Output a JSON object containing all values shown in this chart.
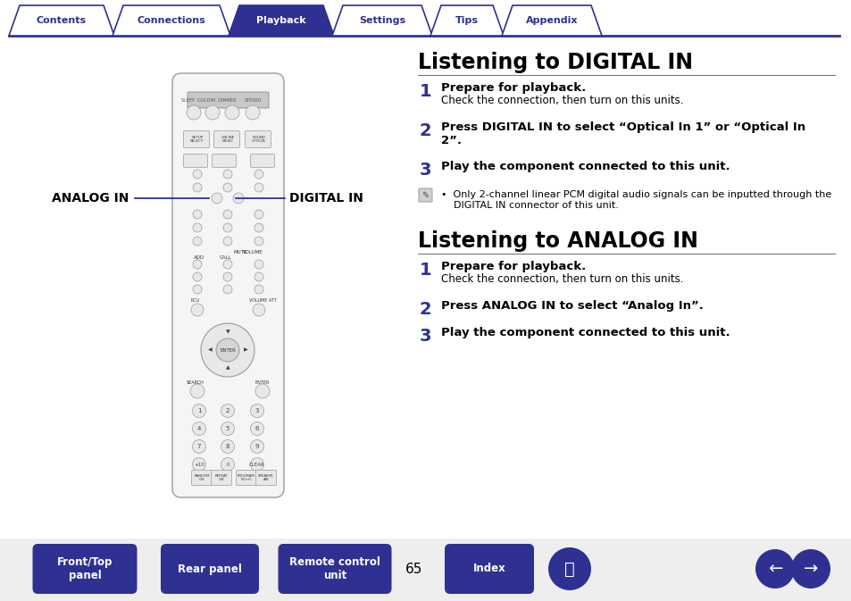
{
  "bg_color": "#ffffff",
  "tab_color_active": "#2e3192",
  "tab_color_inactive": "#ffffff",
  "tab_text_color_active": "#ffffff",
  "tab_text_color_inactive": "#2e3192",
  "tab_border_color": "#2e3192",
  "tabs": [
    "Contents",
    "Connections",
    "Playback",
    "Settings",
    "Tips",
    "Appendix"
  ],
  "active_tab": 2,
  "title1": "Listening to DIGITAL IN",
  "title2": "Listening to ANALOG IN",
  "step1_bold": "Prepare for playback.",
  "step1_text": "Check the connection, then turn on this units.",
  "step2_digital_bold": "Press DIGITAL IN to select “Optical In 1” or “Optical In\n2”.",
  "step3_bold": "Play the component connected to this unit.",
  "note_text": "•  Only 2-channel linear PCM digital audio signals can be inputted through the\n    DIGITAL IN connector of this unit.",
  "step1a_bold": "Prepare for playback.",
  "step1a_text": "Check the connection, then turn on this units.",
  "step2a_bold": "Press ANALOG IN to select “Analog In”.",
  "step3a_bold": "Play the component connected to this unit.",
  "analog_in_label": "ANALOG IN",
  "digital_in_label": "DIGITAL IN",
  "page_number": "65",
  "btn_color": "#2e3192",
  "btn_text_color": "#ffffff",
  "line_color": "#2e3192",
  "number_color": "#2e3192",
  "text_color": "#000000",
  "title_color": "#000000",
  "label_color": "#000000",
  "remote_bg": "#f5f5f5",
  "remote_border": "#aaaaaa",
  "btn_face": "#e8e8e8",
  "btn_edge": "#999999",
  "display_color": "#c8c8c8"
}
